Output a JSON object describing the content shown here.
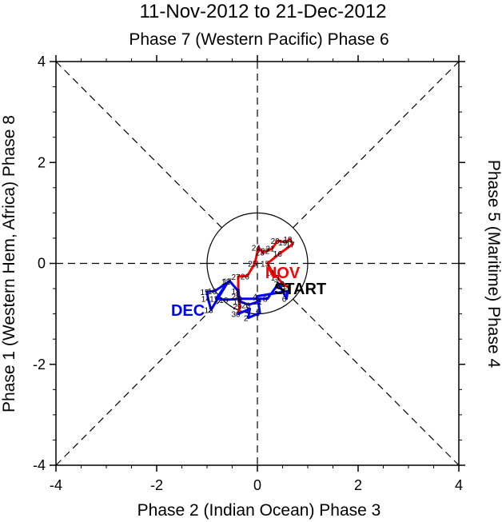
{
  "chart_data": {
    "type": "line",
    "title": "11-Nov-2012 to 21-Dec-2012",
    "top_label": "Phase 7 (Western Pacific) Phase 6",
    "xlabel": "Phase 2 (Indian Ocean) Phase 3",
    "ylabel_left": "Phase 1 (Western Hem, Africa) Phase 8",
    "ylabel_right": "Phase 5 (Maritime) Phase 4",
    "xlim": [
      -4,
      4
    ],
    "ylim": [
      -4,
      4
    ],
    "xticks": [
      "-4",
      "-2",
      "0",
      "2",
      "4"
    ],
    "yticks": [
      "-4",
      "-2",
      "0",
      "2",
      "4"
    ],
    "unit_circle_radius": 1,
    "annotations": [
      {
        "text": "START",
        "x": 0.85,
        "y": -0.5,
        "color": "#000000",
        "size": "large"
      },
      {
        "text": "NOV",
        "x": 0.5,
        "y": -0.18,
        "color": "#ff0000",
        "size": "large"
      },
      {
        "text": "DEC",
        "x": -1.38,
        "y": -0.93,
        "color": "#0000ff",
        "size": "large"
      }
    ],
    "series": [
      {
        "name": "Nov",
        "color": "#ff0000",
        "points": [
          {
            "day": "11",
            "x": 0.62,
            "y": -0.48
          },
          {
            "day": "12",
            "x": 0.5,
            "y": -0.4
          },
          {
            "day": "13",
            "x": 0.4,
            "y": -0.28
          },
          {
            "day": "14",
            "x": 0.3,
            "y": -0.18
          },
          {
            "day": "15",
            "x": 0.2,
            "y": 0.0
          },
          {
            "day": "16",
            "x": 0.45,
            "y": 0.2
          },
          {
            "day": "17",
            "x": 0.7,
            "y": 0.38
          },
          {
            "day": "18",
            "x": 0.65,
            "y": 0.48
          },
          {
            "day": "19",
            "x": 0.55,
            "y": 0.42
          },
          {
            "day": "20",
            "x": 0.4,
            "y": 0.45
          },
          {
            "day": "21",
            "x": 0.3,
            "y": 0.3
          },
          {
            "day": "22",
            "x": 0.2,
            "y": 0.25
          },
          {
            "day": "23",
            "x": 0.1,
            "y": 0.22
          },
          {
            "day": "24",
            "x": 0.02,
            "y": 0.32
          },
          {
            "day": "25",
            "x": -0.05,
            "y": 0.0
          },
          {
            "day": "26",
            "x": -0.2,
            "y": -0.25
          },
          {
            "day": "27",
            "x": -0.38,
            "y": -0.26
          },
          {
            "day": "28",
            "x": -0.38,
            "y": -0.65
          },
          {
            "day": "29",
            "x": -0.35,
            "y": -0.85
          },
          {
            "day": "30",
            "x": -0.38,
            "y": -1.0
          }
        ]
      },
      {
        "name": "Dec",
        "color": "#0000ff",
        "points": [
          {
            "day": "1",
            "x": -0.15,
            "y": -0.9
          },
          {
            "day": "2",
            "x": -0.18,
            "y": -1.08
          },
          {
            "day": "3",
            "x": 0.05,
            "y": -0.98
          },
          {
            "day": "4",
            "x": 0.0,
            "y": -0.65
          },
          {
            "day": "5",
            "x": 0.6,
            "y": -0.55
          },
          {
            "day": "6",
            "x": 0.58,
            "y": -0.7
          },
          {
            "day": "7",
            "x": 0.42,
            "y": -0.4
          },
          {
            "day": "8",
            "x": 0.2,
            "y": -0.7
          },
          {
            "day": "9",
            "x": -0.3,
            "y": -0.7
          },
          {
            "day": "10",
            "x": -0.62,
            "y": -0.72
          },
          {
            "day": "11",
            "x": -0.82,
            "y": -0.7
          },
          {
            "day": "12",
            "x": -0.58,
            "y": -0.36
          },
          {
            "day": "13",
            "x": -0.92,
            "y": -0.92
          },
          {
            "day": "14",
            "x": -0.98,
            "y": -0.7
          },
          {
            "day": "15",
            "x": -1.0,
            "y": -0.56
          },
          {
            "day": "16",
            "x": -0.85,
            "y": -0.55
          },
          {
            "day": "17",
            "x": -0.55,
            "y": -0.35
          },
          {
            "day": "18",
            "x": -0.38,
            "y": -0.55
          },
          {
            "day": "19",
            "x": -0.35,
            "y": -0.75
          },
          {
            "day": "20",
            "x": -0.18,
            "y": -0.82
          },
          {
            "day": "21",
            "x": 0.05,
            "y": -0.75
          }
        ]
      }
    ]
  }
}
